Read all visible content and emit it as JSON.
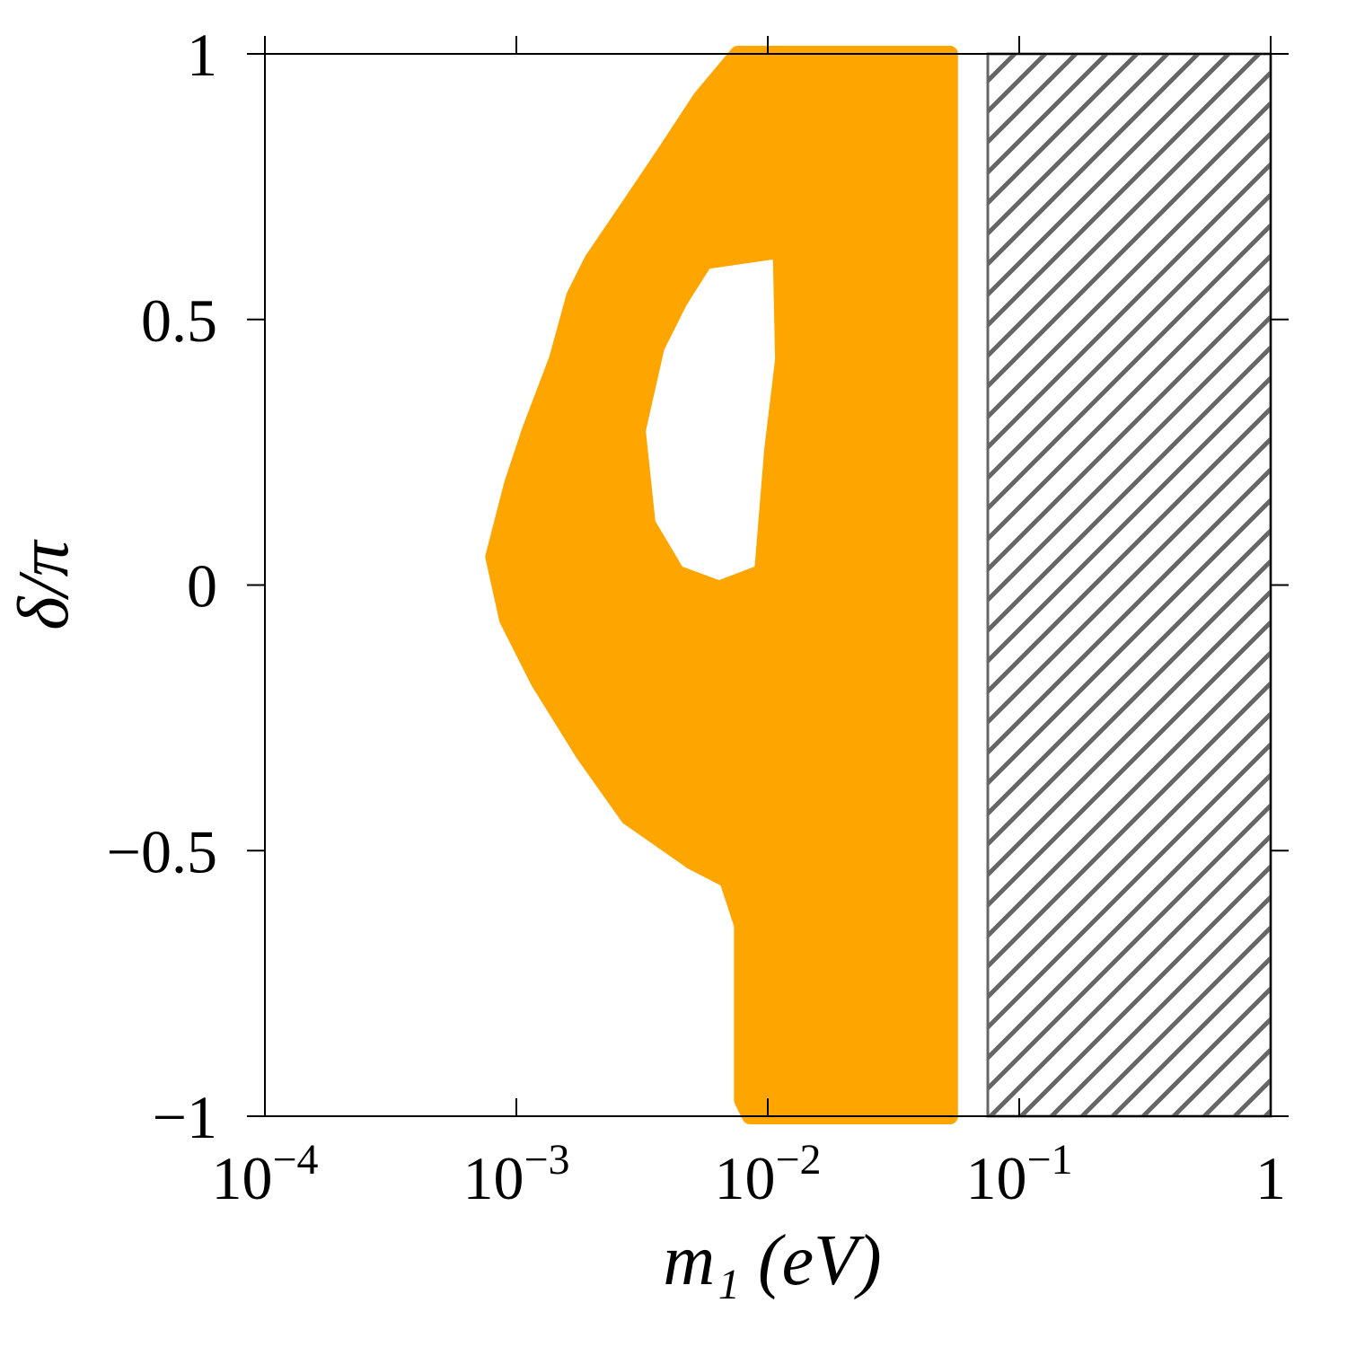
{
  "chart_data": {
    "type": "region",
    "xlabel": "m₁ (eV)",
    "ylabel": "δ/π",
    "xscale": "log",
    "xlim": [
      0.0001,
      1
    ],
    "ylim": [
      -1,
      1
    ],
    "xticks": [
      {
        "value": 0.0001,
        "label": "10−4"
      },
      {
        "value": 0.001,
        "label": "10−3"
      },
      {
        "value": 0.01,
        "label": "10−2"
      },
      {
        "value": 0.1,
        "label": "10−1"
      },
      1
    ],
    "yticks": [
      1,
      0.5,
      0,
      {
        "value": -0.5,
        "label": "−0.5"
      },
      {
        "value": -1,
        "label": "−1"
      }
    ],
    "regions": [
      {
        "color": "#ffa500",
        "x": [
          0.0076,
          0.053,
          0.053,
          0.0085,
          0.0079,
          0.0079,
          0.0069,
          0.00497,
          0.00279,
          0.00185,
          0.00123,
          0.00092,
          0.00081,
          0.00096,
          0.00113,
          0.00145,
          0.0017,
          0.002,
          0.0028,
          0.0039,
          0.0054
        ],
        "y": [
          1,
          1,
          -1,
          -1,
          -0.97,
          -0.64,
          -0.555,
          -0.52,
          -0.437,
          -0.318,
          -0.183,
          -0.065,
          0.053,
          0.189,
          0.29,
          0.425,
          0.544,
          0.611,
          0.713,
          0.814,
          0.916
        ],
        "holes": [
          {
            "x": [
              0.0059,
              0.0104,
              0.0106,
              0.0096,
              0.0088,
              0.0064,
              0.0046,
              0.0036,
              0.0033,
              0.0039,
              0.0048
            ],
            "y": [
              0.594,
              0.611,
              0.425,
              0.256,
              0.036,
              0.011,
              0.036,
              0.121,
              0.29,
              0.442,
              0.527
            ]
          }
        ]
      }
    ],
    "excluded": {
      "color": "#666666",
      "x": [
        0.075,
        1
      ]
    }
  }
}
